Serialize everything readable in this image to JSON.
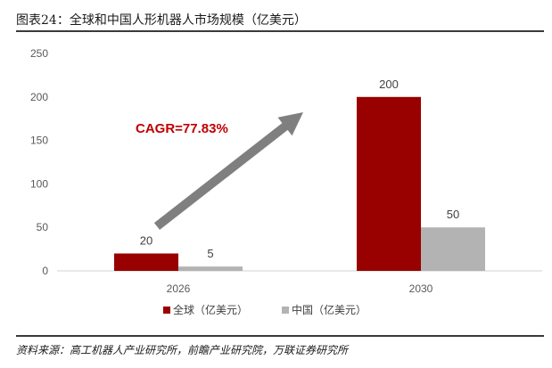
{
  "figure": {
    "title": "图表24：全球和中国人形机器人市场规模（亿美元）",
    "source": "资料来源：高工机器人产业研究所，前瞻产业研究院，万联证券研究所"
  },
  "chart_data": {
    "type": "bar",
    "categories": [
      "2026",
      "2030"
    ],
    "series": [
      {
        "name": "全球（亿美元）",
        "values": [
          20,
          200
        ],
        "color": "#990000"
      },
      {
        "name": "中国（亿美元）",
        "values": [
          5,
          50
        ],
        "color": "#b3b3b3"
      }
    ],
    "ylim": [
      0,
      250
    ],
    "yticks": [
      0,
      50,
      100,
      150,
      200,
      250
    ],
    "grid": false,
    "legend": "bottom-center",
    "annotation": {
      "text": "CAGR=77.83%",
      "color": "#c00000"
    },
    "arrow_color": "#7f7f7f"
  }
}
